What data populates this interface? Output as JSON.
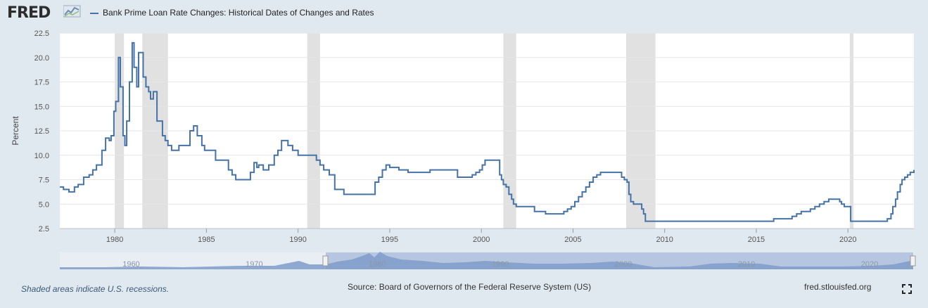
{
  "header": {
    "logo_text": "FRED",
    "series_title": "Bank Prime Loan Rate Changes: Historical Dates of Changes and Rates"
  },
  "colors": {
    "series": "#4572a7",
    "recession": "#e1e1e1",
    "navigator_fill": "#a7b9d5",
    "navigator_selection": "#b7c6e0",
    "background": "#e1e9f0"
  },
  "chart_data": {
    "type": "line",
    "title": "",
    "xlabel": "",
    "ylabel": "Percent",
    "xlim": [
      1977,
      2023.6
    ],
    "ylim": [
      2.5,
      22.5
    ],
    "y_ticks": [
      "2.5",
      "5.0",
      "7.5",
      "10.0",
      "12.5",
      "15.0",
      "17.5",
      "20.0",
      "22.5"
    ],
    "x_ticks": [
      "1980",
      "1985",
      "1990",
      "1995",
      "2000",
      "2005",
      "2010",
      "2015",
      "2020"
    ],
    "grid": "horizontal",
    "recessions": [
      [
        1980.0,
        1980.5
      ],
      [
        1981.5,
        1982.9
      ],
      [
        1990.5,
        1991.2
      ],
      [
        2001.2,
        2001.9
      ],
      [
        2007.9,
        2009.5
      ],
      [
        2020.1,
        2020.3
      ]
    ],
    "series": [
      {
        "name": "Bank Prime Loan Rate Changes: Historical Dates of Changes and Rates",
        "step": true,
        "x": [
          1977.0,
          1977.2,
          1977.5,
          1977.8,
          1978.0,
          1978.3,
          1978.6,
          1978.8,
          1979.0,
          1979.3,
          1979.5,
          1979.7,
          1979.8,
          1979.95,
          1980.05,
          1980.2,
          1980.3,
          1980.45,
          1980.55,
          1980.65,
          1980.8,
          1980.95,
          1981.05,
          1981.2,
          1981.3,
          1981.45,
          1981.55,
          1981.7,
          1981.85,
          1981.95,
          1982.1,
          1982.3,
          1982.6,
          1982.75,
          1982.9,
          1983.1,
          1983.5,
          1984.1,
          1984.3,
          1984.5,
          1984.75,
          1984.9,
          1985.0,
          1985.5,
          1986.2,
          1986.4,
          1986.6,
          1987.4,
          1987.6,
          1987.75,
          1987.85,
          1988.1,
          1988.4,
          1988.7,
          1988.9,
          1989.1,
          1989.45,
          1989.7,
          1990.0,
          1991.0,
          1991.2,
          1991.4,
          1991.7,
          1992.0,
          1992.5,
          1994.2,
          1994.4,
          1994.6,
          1994.8,
          1995.0,
          1995.5,
          1996.0,
          1997.2,
          1998.7,
          1998.8,
          1999.5,
          1999.7,
          1999.9,
          2000.05,
          2000.2,
          2000.4,
          2001.0,
          2001.1,
          2001.2,
          2001.35,
          2001.5,
          2001.65,
          2001.75,
          2001.9,
          2002.9,
          2003.5,
          2004.5,
          2004.7,
          2004.9,
          2005.1,
          2005.3,
          2005.5,
          2005.7,
          2005.9,
          2006.1,
          2006.3,
          2006.5,
          2007.65,
          2007.8,
          2007.95,
          2008.05,
          2008.15,
          2008.3,
          2008.75,
          2008.85,
          2008.95,
          2015.95,
          2016.95,
          2017.2,
          2017.45,
          2017.95,
          2018.2,
          2018.45,
          2018.7,
          2018.95,
          2019.55,
          2019.65,
          2019.8,
          2020.15,
          2020.25,
          2022.15,
          2022.35,
          2022.45,
          2022.6,
          2022.7,
          2022.85,
          2022.95,
          2023.1,
          2023.25,
          2023.4,
          2023.6
        ],
        "values": [
          6.75,
          6.5,
          6.25,
          6.75,
          7.0,
          7.75,
          8.0,
          8.5,
          9.0,
          10.5,
          11.75,
          11.5,
          12.0,
          14.5,
          15.5,
          20.0,
          17.0,
          12.0,
          11.0,
          13.5,
          17.5,
          21.5,
          19.0,
          17.0,
          20.5,
          20.5,
          18.0,
          17.0,
          16.5,
          15.75,
          16.5,
          13.5,
          12.0,
          11.5,
          11.0,
          10.5,
          11.0,
          12.5,
          13.0,
          12.0,
          11.0,
          10.5,
          10.5,
          9.5,
          8.5,
          8.0,
          7.5,
          8.25,
          9.25,
          8.75,
          9.0,
          8.5,
          9.0,
          10.0,
          10.5,
          11.5,
          11.0,
          10.5,
          10.0,
          9.5,
          9.0,
          8.5,
          8.0,
          6.5,
          6.0,
          7.25,
          7.75,
          8.5,
          9.0,
          8.75,
          8.5,
          8.25,
          8.5,
          7.75,
          7.75,
          8.0,
          8.25,
          8.5,
          9.0,
          9.5,
          9.5,
          8.0,
          7.5,
          7.0,
          6.75,
          6.0,
          5.5,
          5.0,
          4.75,
          4.25,
          4.0,
          4.25,
          4.5,
          4.75,
          5.25,
          5.75,
          6.25,
          6.75,
          7.25,
          7.75,
          8.0,
          8.25,
          7.75,
          7.5,
          7.25,
          6.0,
          5.25,
          5.0,
          4.5,
          4.0,
          3.25,
          3.5,
          3.75,
          4.0,
          4.25,
          4.5,
          4.75,
          5.0,
          5.25,
          5.5,
          5.25,
          5.0,
          4.75,
          3.25,
          3.25,
          3.5,
          4.0,
          4.75,
          5.5,
          6.25,
          7.0,
          7.5,
          7.75,
          8.0,
          8.25,
          8.5
        ]
      }
    ],
    "navigator": {
      "x_labels": [
        "1960",
        "1970",
        "1980",
        "1990",
        "2000",
        "2010",
        "2020"
      ]
    }
  },
  "footer": {
    "recession_note": "Shaded areas indicate U.S. recessions.",
    "source": "Source: Board of Governors of the Federal Reserve System (US)",
    "site": "fred.stlouisfed.org"
  }
}
